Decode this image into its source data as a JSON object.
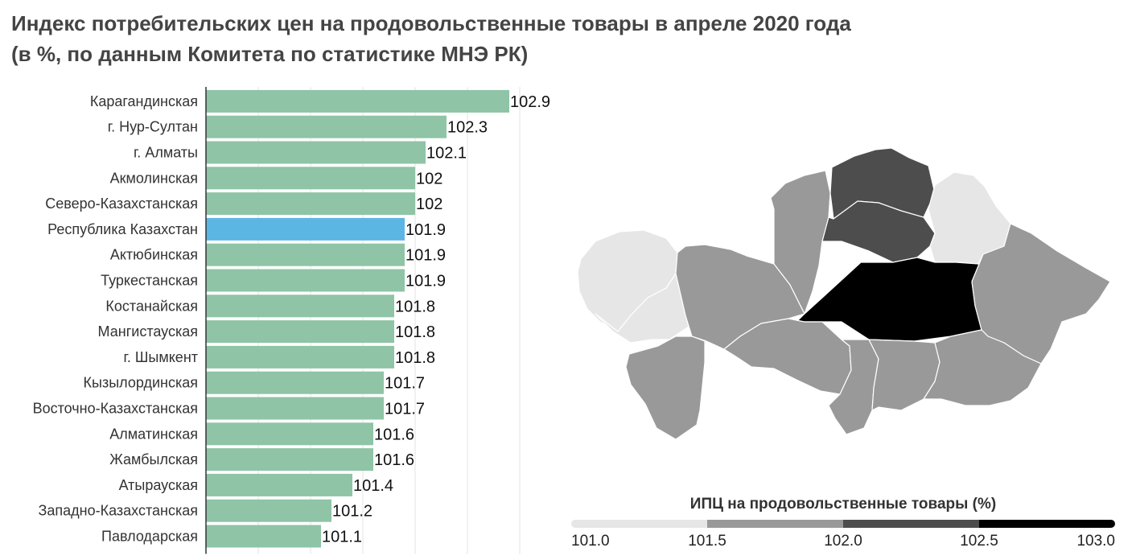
{
  "title": {
    "line1": "Индекс потребительских цен на продовольственные товары в апреле 2020 года",
    "line2": "(в %, по данным Комитета по статистике МНЭ РК)"
  },
  "chart_data": [
    {
      "type": "bar",
      "orientation": "horizontal",
      "categories": [
        "Карагандинская",
        "г. Нур-Султан",
        "г. Алматы",
        "Акмолинская",
        "Северо-Казахстанская",
        "Республика Казахстан",
        "Актюбинская",
        "Туркестанская",
        "Костанайская",
        "Мангистауская",
        "г. Шымкент",
        "Кызылординская",
        "Восточно-Казахстанская",
        "Алматинская",
        "Жамбылская",
        "Атырауская",
        "Западно-Казахстанская",
        "Павлодарская"
      ],
      "values": [
        102.9,
        102.3,
        102.1,
        102,
        102,
        101.9,
        101.9,
        101.9,
        101.8,
        101.8,
        101.8,
        101.7,
        101.7,
        101.6,
        101.6,
        101.4,
        101.2,
        101.1
      ],
      "value_labels": [
        "102.9",
        "102.3",
        "102.1",
        "102",
        "102",
        "101.9",
        "101.9",
        "101.9",
        "101.8",
        "101.8",
        "101.8",
        "101.7",
        "101.7",
        "101.6",
        "101.6",
        "101.4",
        "101.2",
        "101.1"
      ],
      "highlight": "Республика Казахстан",
      "xlim": [
        100,
        103
      ],
      "grid": true,
      "colors": {
        "bar": "#8fc4a6",
        "highlight": "#5cb6e4",
        "grid": "#e3e3e3"
      }
    },
    {
      "type": "choropleth",
      "legend_title": "ИПЦ на продовольственные товары (%)",
      "scale_ticks": [
        "101.0",
        "101.5",
        "102.0",
        "102.5",
        "103.0"
      ],
      "scale_colors": [
        "#e6e6e6",
        "#999999",
        "#4d4d4d",
        "#000000"
      ],
      "regions": [
        {
          "name": "Западно-Казахстанская",
          "value": 101.2
        },
        {
          "name": "Атырауская",
          "value": 101.4
        },
        {
          "name": "Мангистауская",
          "value": 101.8
        },
        {
          "name": "Актюбинская",
          "value": 101.9
        },
        {
          "name": "Костанайская",
          "value": 101.8
        },
        {
          "name": "Северо-Казахстанская",
          "value": 102
        },
        {
          "name": "Акмолинская",
          "value": 102
        },
        {
          "name": "Павлодарская",
          "value": 101.1
        },
        {
          "name": "Карагандинская",
          "value": 102.9
        },
        {
          "name": "Восточно-Казахстанская",
          "value": 101.7
        },
        {
          "name": "Кызылординская",
          "value": 101.7
        },
        {
          "name": "Туркестанская",
          "value": 101.9
        },
        {
          "name": "Жамбылская",
          "value": 101.6
        },
        {
          "name": "Алматинская",
          "value": 101.6
        }
      ]
    }
  ]
}
